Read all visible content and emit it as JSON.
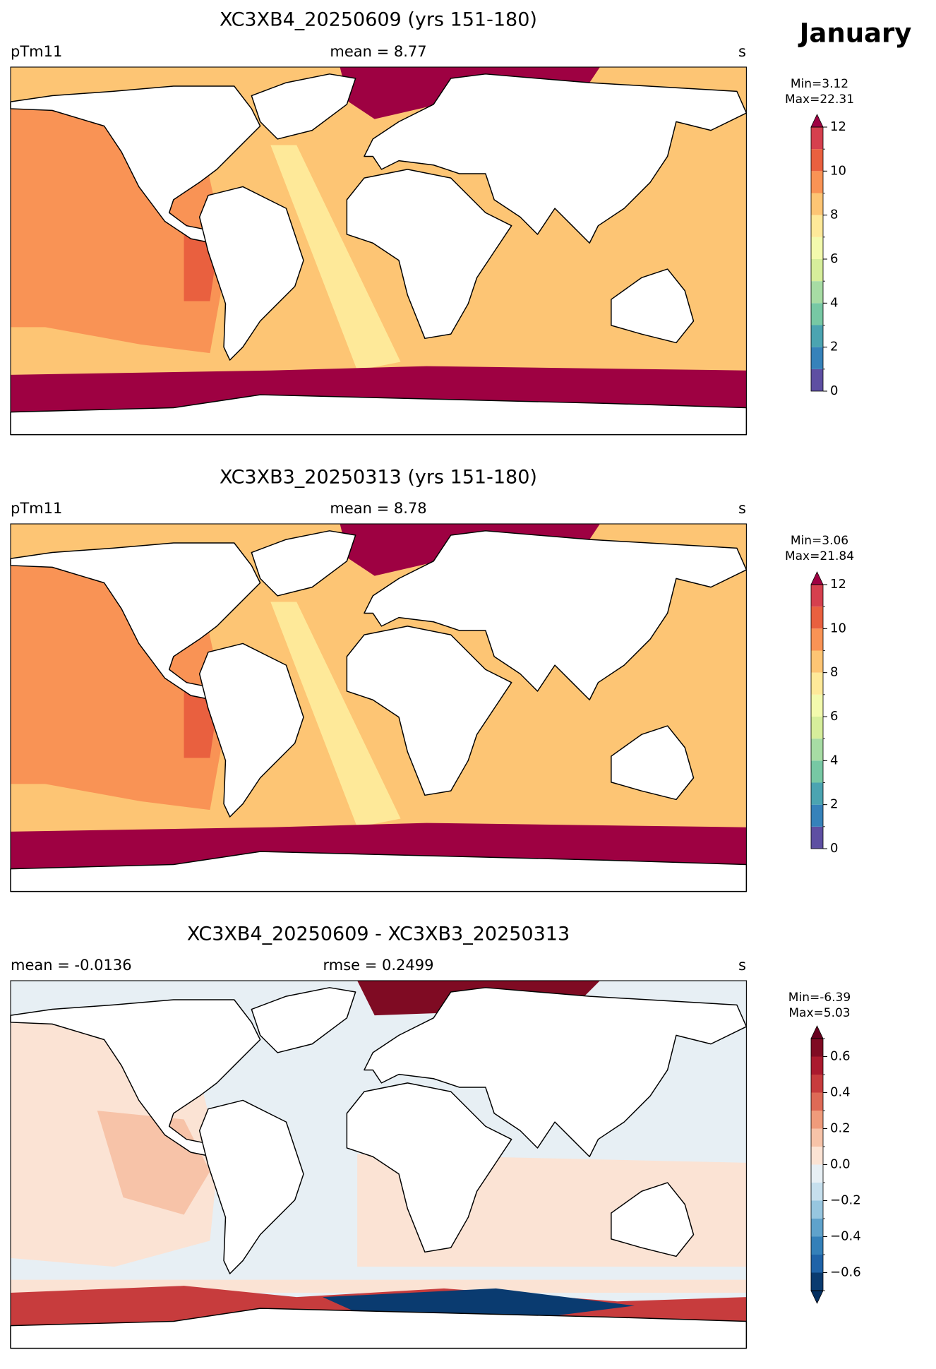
{
  "figure_title": "January",
  "chart_data": [
    {
      "type": "map",
      "title": "XC3XB4_20250609 (yrs 151-180)",
      "left_label": "pTm11",
      "center_label": "mean = 8.77",
      "right_label": "s",
      "stats": [
        "Min=3.12",
        "Max=22.31"
      ],
      "colorbar": {
        "levels": [
          0,
          1,
          2,
          3,
          4,
          5,
          6,
          7,
          8,
          9,
          10,
          11,
          12
        ],
        "colors": [
          "#5e4fa2",
          "#3682ba",
          "#4ba4b1",
          "#77c8a4",
          "#a7dca4",
          "#d6ee9b",
          "#f3faad",
          "#fee999",
          "#fdc574",
          "#f99355",
          "#e9603f",
          "#d5404e"
        ],
        "over_color": "#9e0142",
        "ticks": [
          0,
          2,
          4,
          6,
          8,
          10,
          12
        ]
      }
    },
    {
      "type": "map",
      "title": "XC3XB3_20250313 (yrs 151-180)",
      "left_label": "pTm11",
      "center_label": "mean = 8.78",
      "right_label": "s",
      "stats": [
        "Min=3.06",
        "Max=21.84"
      ],
      "colorbar": {
        "levels": [
          0,
          1,
          2,
          3,
          4,
          5,
          6,
          7,
          8,
          9,
          10,
          11,
          12
        ],
        "colors": [
          "#5e4fa2",
          "#3682ba",
          "#4ba4b1",
          "#77c8a4",
          "#a7dca4",
          "#d6ee9b",
          "#f3faad",
          "#fee999",
          "#fdc574",
          "#f99355",
          "#e9603f",
          "#d5404e"
        ],
        "over_color": "#9e0142",
        "ticks": [
          0,
          2,
          4,
          6,
          8,
          10,
          12
        ]
      }
    },
    {
      "type": "map",
      "title": "XC3XB4_20250609 - XC3XB3_20250313",
      "left_label": "mean = -0.0136",
      "center_label": "rmse = 0.2499",
      "right_label": "s",
      "stats": [
        "Min=-6.39",
        "Max=5.03"
      ],
      "colorbar": {
        "levels": [
          -0.7,
          -0.6,
          -0.5,
          -0.4,
          -0.3,
          -0.2,
          -0.1,
          0,
          0.1,
          0.2,
          0.3,
          0.4,
          0.5,
          0.6,
          0.7
        ],
        "colors": [
          "#0a3b70",
          "#1f63a8",
          "#3480b9",
          "#5fa2cb",
          "#97c6df",
          "#c6dfed",
          "#e7eff4",
          "#fbe3d4",
          "#f7c3a8",
          "#ef9b7b",
          "#de6a56",
          "#c73c3d",
          "#aa1a2e",
          "#7f0b23"
        ],
        "over_color": "#67001f",
        "under_color": "#053061",
        "ticks": [
          {
            "value": -0.6,
            "label": "−0.6"
          },
          {
            "value": -0.4,
            "label": "−0.4"
          },
          {
            "value": -0.2,
            "label": "−0.2"
          },
          {
            "value": 0,
            "label": "0.0"
          },
          0.2,
          0.4,
          0.6
        ]
      }
    }
  ]
}
